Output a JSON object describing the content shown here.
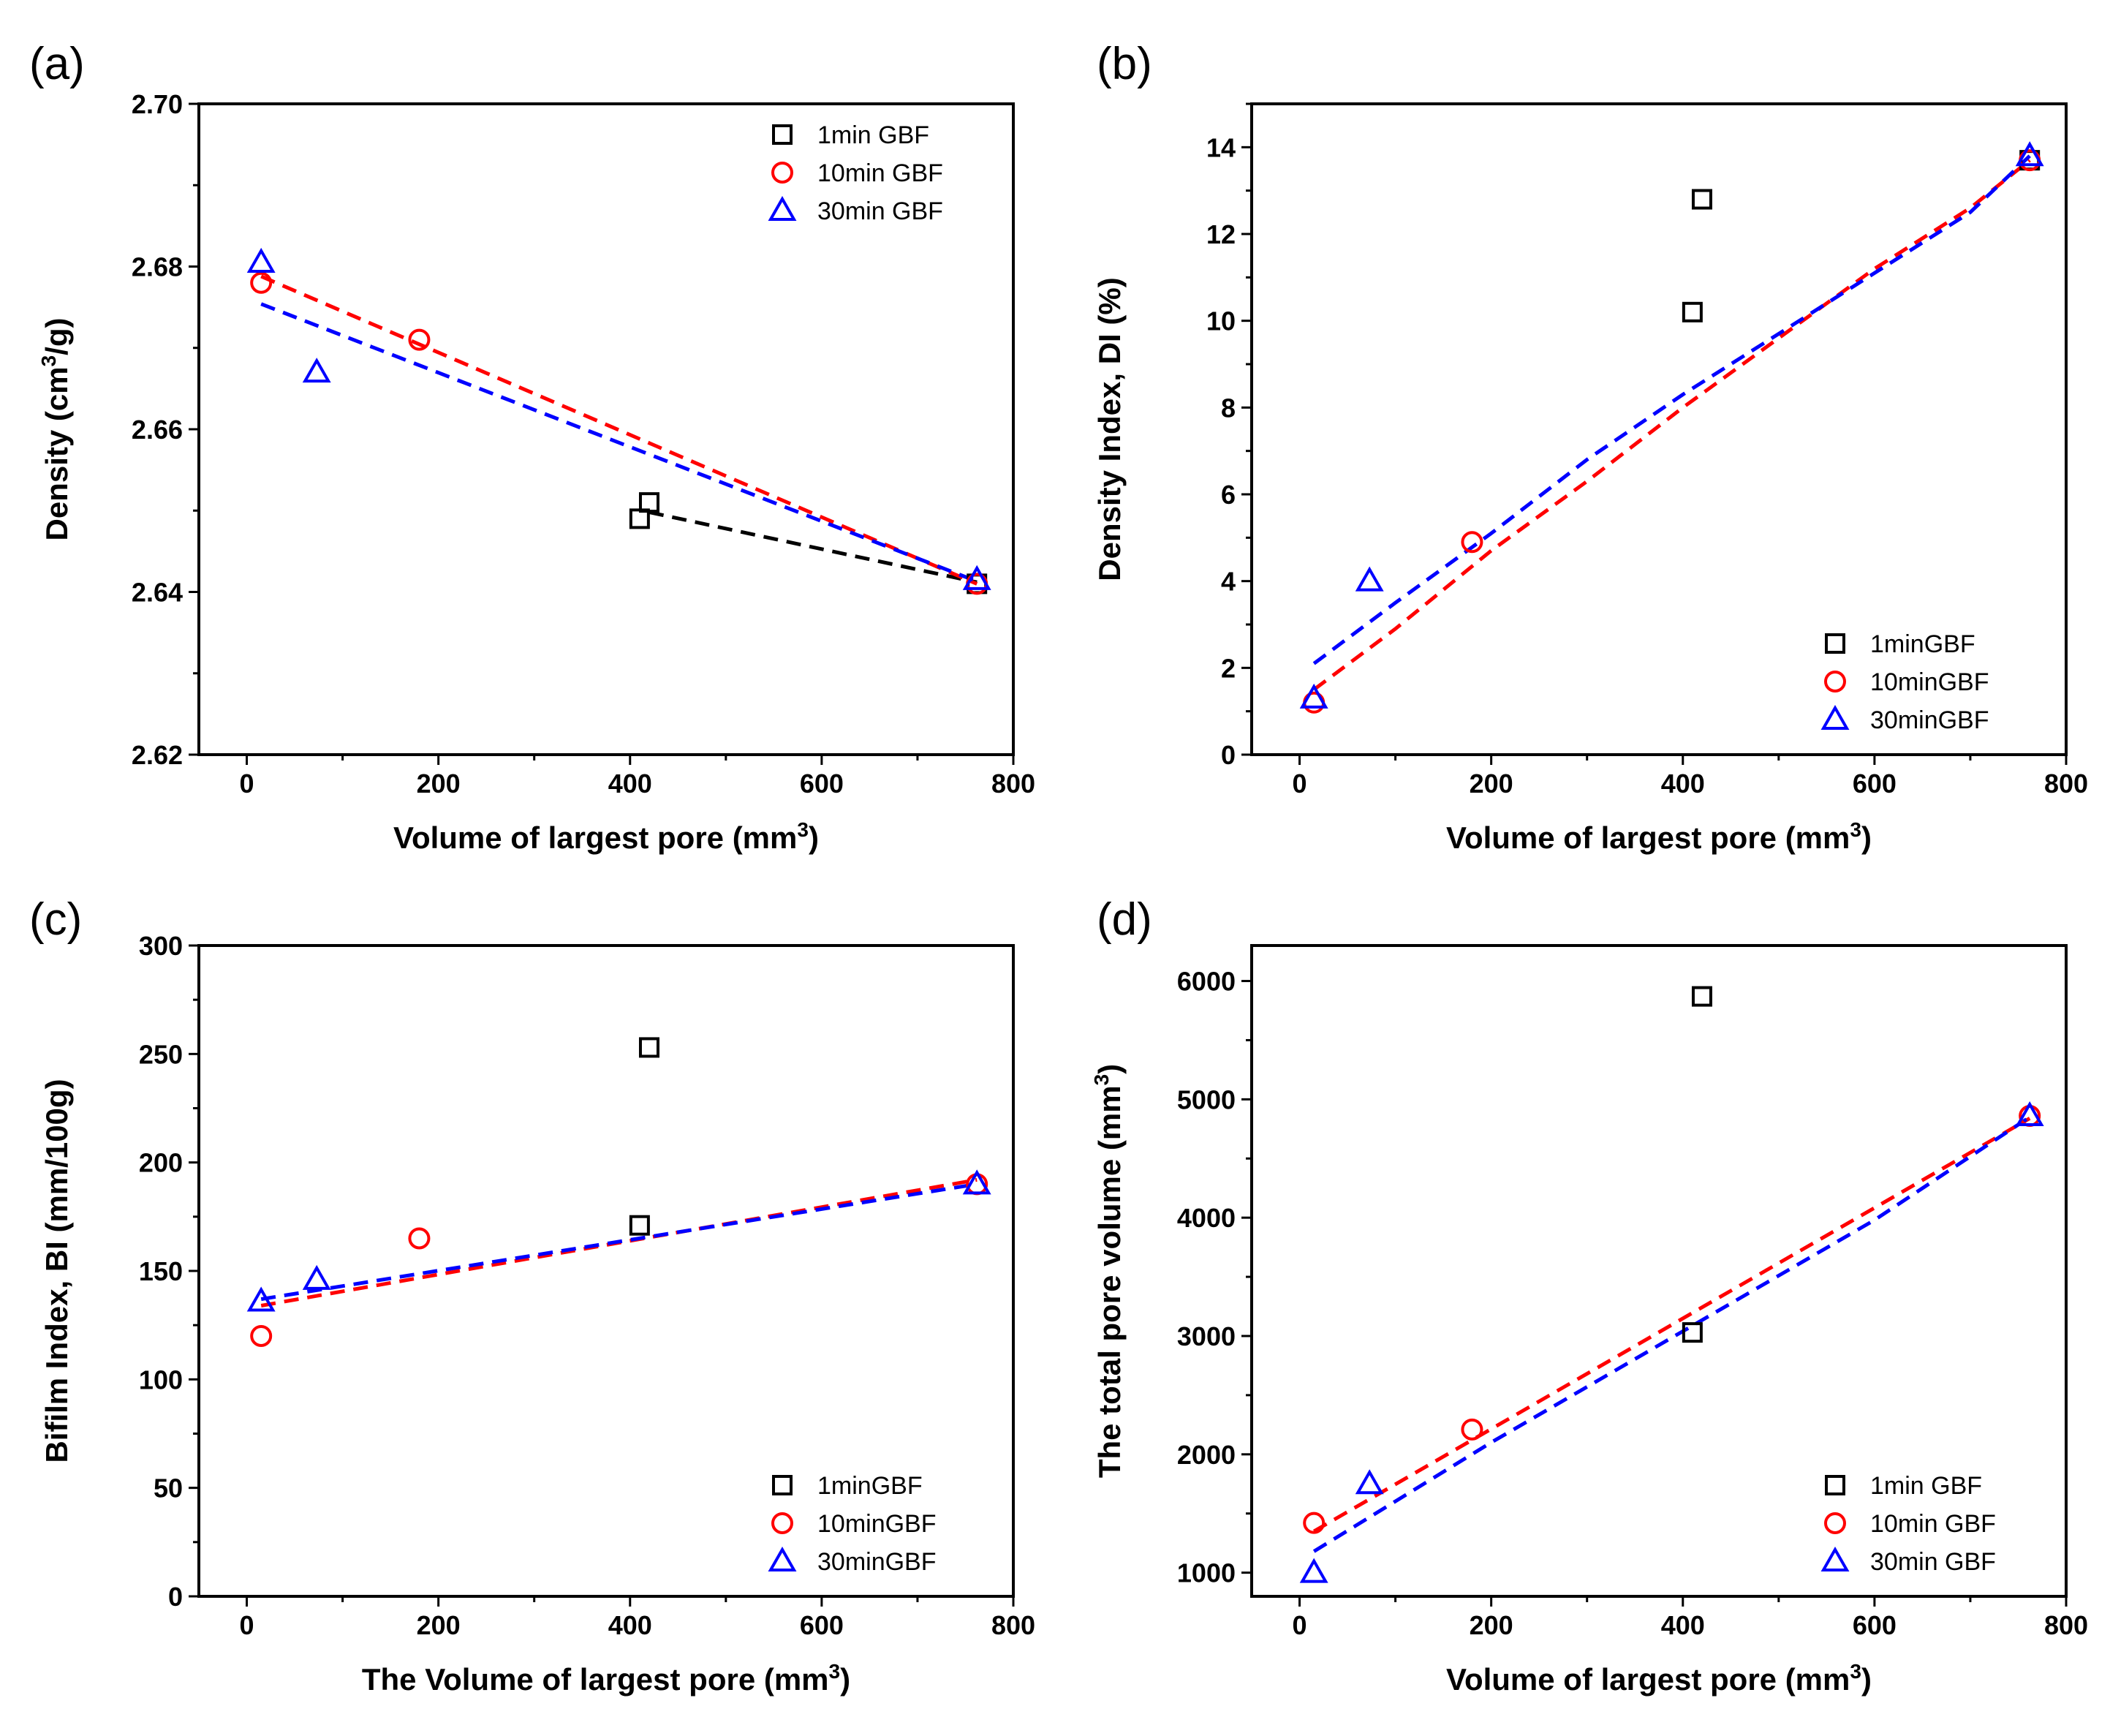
{
  "chart_data": [
    {
      "panel": "(a)",
      "type": "scatter",
      "xlabel": "Volume of largest pore (mm",
      "xlabel_sup": "3",
      "xlabel_end": ")",
      "ylabel": "Density (cm",
      "ylabel_sup": "3",
      "ylabel_end": "/g)",
      "xlim": [
        -50,
        800
      ],
      "ylim": [
        2.62,
        2.7
      ],
      "xticks": [
        0,
        200,
        400,
        600,
        800
      ],
      "xtick_labels": [
        "0",
        "200",
        "400",
        "600",
        "800"
      ],
      "yticks": [
        2.62,
        2.64,
        2.66,
        2.68,
        2.7
      ],
      "ytick_labels": [
        "2.62",
        "2.64",
        "2.66",
        "2.68",
        "2.70"
      ],
      "legend_position": "top-right",
      "series": [
        {
          "name": "1min GBF",
          "marker": "square",
          "color": "#000000",
          "x": [
            410,
            420,
            762
          ],
          "y": [
            2.649,
            2.651,
            2.641
          ],
          "fit": [
            [
              420,
              2.6498
            ],
            [
              762,
              2.6412
            ]
          ]
        },
        {
          "name": "10min GBF",
          "marker": "circle",
          "color": "#ff0000",
          "x": [
            15,
            180,
            762
          ],
          "y": [
            2.678,
            2.671,
            2.641
          ],
          "fit": [
            [
              15,
              2.6788
            ],
            [
              762,
              2.641
            ]
          ]
        },
        {
          "name": "30min GBF",
          "marker": "triangle",
          "color": "#0000ff",
          "x": [
            15,
            73,
            762
          ],
          "y": [
            2.6805,
            2.667,
            2.6415
          ],
          "fit": [
            [
              15,
              2.6754
            ],
            [
              762,
              2.6413
            ]
          ]
        }
      ]
    },
    {
      "panel": "(b)",
      "type": "scatter",
      "xlabel": "Volume of largest pore (mm",
      "xlabel_sup": "3",
      "xlabel_end": ")",
      "ylabel": "Density Index, DI (%)",
      "ylabel_sup": "",
      "ylabel_end": "",
      "xlim": [
        -50,
        800
      ],
      "ylim": [
        0,
        15
      ],
      "xticks": [
        0,
        200,
        400,
        600,
        800
      ],
      "xtick_labels": [
        "0",
        "200",
        "400",
        "600",
        "800"
      ],
      "yticks": [
        0,
        2,
        4,
        6,
        8,
        10,
        12,
        14
      ],
      "ytick_labels": [
        "0",
        "2",
        "4",
        "6",
        "8",
        "10",
        "12",
        "14"
      ],
      "legend_position": "bottom-right",
      "series": [
        {
          "name": "1minGBF",
          "marker": "square",
          "color": "#000000",
          "x": [
            410,
            420,
            762
          ],
          "y": [
            10.2,
            12.8,
            13.7
          ],
          "fit": []
        },
        {
          "name": "10minGBF",
          "marker": "circle",
          "color": "#ff0000",
          "x": [
            15,
            180,
            762
          ],
          "y": [
            1.2,
            4.9,
            13.7
          ],
          "fit": [
            [
              15,
              1.5
            ],
            [
              100,
              2.9
            ],
            [
              200,
              4.7
            ],
            [
              300,
              6.3
            ],
            [
              400,
              8.0
            ],
            [
              500,
              9.6
            ],
            [
              600,
              11.2
            ],
            [
              700,
              12.6
            ],
            [
              762,
              13.7
            ]
          ]
        },
        {
          "name": "30minGBF",
          "marker": "triangle",
          "color": "#0000ff",
          "x": [
            15,
            73,
            762
          ],
          "y": [
            1.3,
            4.0,
            13.8
          ],
          "fit": [
            [
              15,
              2.1
            ],
            [
              100,
              3.5
            ],
            [
              200,
              5.1
            ],
            [
              300,
              6.8
            ],
            [
              400,
              8.3
            ],
            [
              500,
              9.7
            ],
            [
              600,
              11.1
            ],
            [
              700,
              12.5
            ],
            [
              762,
              13.8
            ]
          ]
        }
      ]
    },
    {
      "panel": "(c)",
      "type": "scatter",
      "xlabel": "The Volume of largest pore (mm",
      "xlabel_sup": "3",
      "xlabel_end": ")",
      "ylabel": "Bifilm Index, BI (mm/100g)",
      "ylabel_sup": "",
      "ylabel_end": "",
      "xlim": [
        -50,
        800
      ],
      "ylim": [
        0,
        300
      ],
      "xticks": [
        0,
        200,
        400,
        600,
        800
      ],
      "xtick_labels": [
        "0",
        "200",
        "400",
        "600",
        "800"
      ],
      "yticks": [
        0,
        50,
        100,
        150,
        200,
        250,
        300
      ],
      "ytick_labels": [
        "0",
        "50",
        "100",
        "150",
        "200",
        "250",
        "300"
      ],
      "legend_position": "bottom-right",
      "series": [
        {
          "name": "1minGBF",
          "marker": "square",
          "color": "#000000",
          "x": [
            410,
            420
          ],
          "y": [
            171,
            253
          ],
          "fit": []
        },
        {
          "name": "10minGBF",
          "marker": "circle",
          "color": "#ff0000",
          "x": [
            15,
            180,
            762
          ],
          "y": [
            120,
            165,
            190
          ],
          "fit": [
            [
              15,
              134
            ],
            [
              762,
              192
            ]
          ]
        },
        {
          "name": "30minGBF",
          "marker": "triangle",
          "color": "#0000ff",
          "x": [
            15,
            73,
            762
          ],
          "y": [
            136,
            146,
            190
          ],
          "fit": [
            [
              15,
              137
            ],
            [
              762,
              190
            ]
          ]
        }
      ]
    },
    {
      "panel": "(d)",
      "type": "scatter",
      "xlabel": "Volume of largest pore (mm",
      "xlabel_sup": "3",
      "xlabel_end": ")",
      "ylabel": "The total pore volume (mm",
      "ylabel_sup": "3",
      "ylabel_end": ")",
      "xlim": [
        -50,
        800
      ],
      "ylim": [
        800,
        6300
      ],
      "xticks": [
        0,
        200,
        400,
        600,
        800
      ],
      "xtick_labels": [
        "0",
        "200",
        "400",
        "600",
        "800"
      ],
      "yticks": [
        1000,
        2000,
        3000,
        4000,
        5000,
        6000
      ],
      "ytick_labels": [
        "1000",
        "2000",
        "3000",
        "4000",
        "5000",
        "6000"
      ],
      "legend_position": "bottom-right",
      "series": [
        {
          "name": "1min GBF",
          "marker": "square",
          "color": "#000000",
          "x": [
            410,
            420
          ],
          "y": [
            3030,
            5870
          ],
          "fit": []
        },
        {
          "name": "10min GBF",
          "marker": "circle",
          "color": "#ff0000",
          "x": [
            15,
            180,
            762
          ],
          "y": [
            1420,
            2210,
            4860
          ],
          "fit": [
            [
              15,
              1350
            ],
            [
              762,
              4840
            ]
          ]
        },
        {
          "name": "30min GBF",
          "marker": "triangle",
          "color": "#0000ff",
          "x": [
            15,
            73,
            762
          ],
          "y": [
            1000,
            1750,
            4860
          ],
          "fit": [
            [
              15,
              1180
            ],
            [
              200,
              2100
            ],
            [
              400,
              3040
            ],
            [
              600,
              3980
            ],
            [
              762,
              4850
            ]
          ]
        }
      ]
    }
  ]
}
